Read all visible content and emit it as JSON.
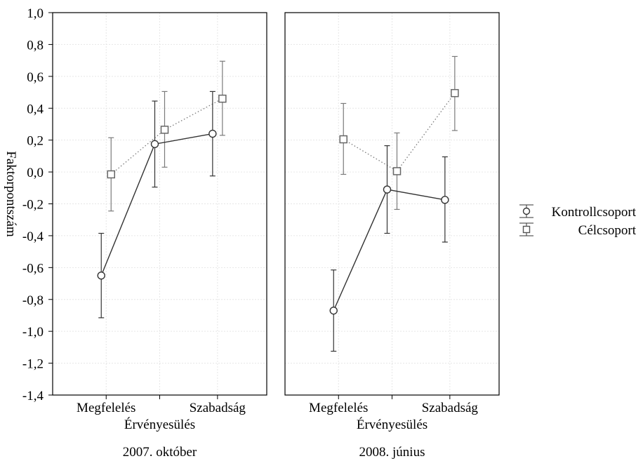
{
  "chart_data": {
    "type": "line",
    "ylabel": "Faktorpontszám",
    "ylim": [
      -1.4,
      1.0
    ],
    "yticks": [
      "1,0",
      "0,8",
      "0,6",
      "0,4",
      "0,2",
      "0,0",
      "-0,2",
      "-0,4",
      "-0,6",
      "-0,8",
      "-1,0",
      "-1,2",
      "-1,4"
    ],
    "ytick_values": [
      1.0,
      0.8,
      0.6,
      0.4,
      0.2,
      0.0,
      -0.2,
      -0.4,
      -0.6,
      -0.8,
      -1.0,
      -1.2,
      -1.4
    ],
    "categories": [
      "Megfelelés",
      "Érvényesülés",
      "Szabadság"
    ],
    "grid": true,
    "legend_position": "right",
    "legend": [
      {
        "name": "Kontrollcsoport",
        "marker": "circle"
      },
      {
        "name": "Célcsoport",
        "marker": "square"
      }
    ],
    "panels": [
      {
        "title": "2007. október",
        "series": [
          {
            "name": "Kontrollcsoport",
            "marker": "circle",
            "line": "solid",
            "color": "#333333",
            "values": [
              -0.65,
              0.175,
              0.24
            ],
            "lower": [
              -0.915,
              -0.095,
              -0.025
            ],
            "upper": [
              -0.385,
              0.445,
              0.505
            ]
          },
          {
            "name": "Célcsoport",
            "marker": "square",
            "line": "dotted",
            "color": "#7a7a7a",
            "values": [
              -0.015,
              0.265,
              0.46
            ],
            "lower": [
              -0.245,
              0.03,
              0.23
            ],
            "upper": [
              0.215,
              0.505,
              0.695
            ]
          }
        ]
      },
      {
        "title": "2008. június",
        "series": [
          {
            "name": "Kontrollcsoport",
            "marker": "circle",
            "line": "solid",
            "color": "#333333",
            "values": [
              -0.87,
              -0.11,
              -0.175
            ],
            "lower": [
              -1.125,
              -0.385,
              -0.44
            ],
            "upper": [
              -0.615,
              0.165,
              0.095
            ]
          },
          {
            "name": "Célcsoport",
            "marker": "square",
            "line": "dotted",
            "color": "#7a7a7a",
            "values": [
              0.205,
              0.005,
              0.495
            ],
            "lower": [
              -0.015,
              -0.235,
              0.26
            ],
            "upper": [
              0.43,
              0.245,
              0.725
            ]
          }
        ]
      }
    ]
  }
}
